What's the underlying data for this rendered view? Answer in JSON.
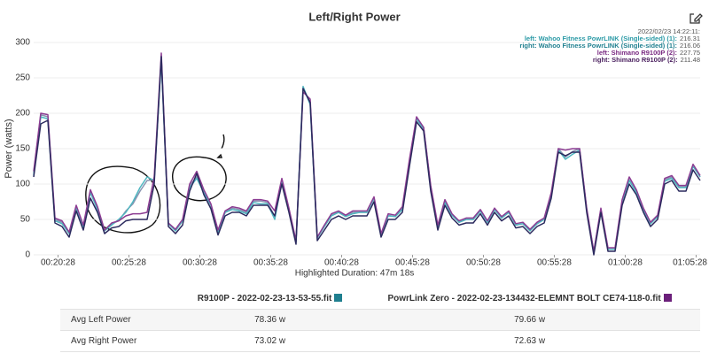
{
  "chart_data": {
    "type": "line",
    "title": "Left/Right Power",
    "ylabel": "Power (watts)",
    "xlabel": "Highlighted Duration: 47m 18s",
    "legend_title": "2022/02/23 14:22:11:",
    "grid": true,
    "legend_position": "upper right",
    "x": [
      "00:18:45",
      "00:19:15",
      "00:19:45",
      "00:20:15",
      "00:20:45",
      "00:21:15",
      "00:21:45",
      "00:22:15",
      "00:22:45",
      "00:23:15",
      "00:23:45",
      "00:24:15",
      "00:24:45",
      "00:25:15",
      "00:25:45",
      "00:26:15",
      "00:26:45",
      "00:27:15",
      "00:27:45",
      "00:28:15",
      "00:28:45",
      "00:29:15",
      "00:29:45",
      "00:30:15",
      "00:30:45",
      "00:31:15",
      "00:31:45",
      "00:32:15",
      "00:32:45",
      "00:33:15",
      "00:33:45",
      "00:34:15",
      "00:34:45",
      "00:35:15",
      "00:35:45",
      "00:36:15",
      "00:36:45",
      "00:37:15",
      "00:37:45",
      "00:38:15",
      "00:38:45",
      "00:39:15",
      "00:39:45",
      "00:40:15",
      "00:40:45",
      "00:41:15",
      "00:41:45",
      "00:42:15",
      "00:42:45",
      "00:43:15",
      "00:43:45",
      "00:44:15",
      "00:44:45",
      "00:45:15",
      "00:45:45",
      "00:46:15",
      "00:46:45",
      "00:47:15",
      "00:47:45",
      "00:48:15",
      "00:48:45",
      "00:49:15",
      "00:49:45",
      "00:50:15",
      "00:50:45",
      "00:51:15",
      "00:51:45",
      "00:52:15",
      "00:52:45",
      "00:53:15",
      "00:53:45",
      "00:54:15",
      "00:54:45",
      "00:55:15",
      "00:55:45",
      "00:56:15",
      "00:56:45",
      "00:57:15",
      "00:57:45",
      "00:58:15",
      "00:58:45",
      "00:59:15",
      "00:59:45",
      "01:00:15",
      "01:00:45",
      "01:01:15",
      "01:01:45",
      "01:02:15",
      "01:02:45",
      "01:03:15",
      "01:03:45",
      "01:04:15",
      "01:04:45",
      "01:05:15",
      "01:05:45"
    ],
    "xlim": [
      "00:18:45",
      "01:05:45"
    ],
    "xticks": [
      "00:20:28",
      "00:25:28",
      "00:30:28",
      "00:35:28",
      "00:40:28",
      "00:45:28",
      "00:50:28",
      "00:55:28",
      "01:00:28",
      "01:05:28"
    ],
    "ylim": [
      0,
      310
    ],
    "yticks": [
      0,
      50,
      100,
      150,
      200,
      250,
      300
    ],
    "series": [
      {
        "name": "right: Wahoo Fitness PowrLINK (Single-sided) (1):",
        "legend_color": "#1f7f8f",
        "color": "#8a93b0",
        "hover_value": 216.06,
        "values": [
          115,
          198,
          195,
          50,
          46,
          30,
          68,
          40,
          90,
          66,
          34,
          44,
          48,
          62,
          72,
          90,
          105,
          106,
          278,
          44,
          34,
          48,
          98,
          110,
          90,
          70,
          33,
          60,
          66,
          64,
          60,
          76,
          76,
          74,
          54,
          106,
          64,
          18,
          236,
          214,
          24,
          40,
          56,
          60,
          55,
          60,
          60,
          60,
          80,
          28,
          56,
          54,
          66,
          132,
          194,
          180,
          96,
          40,
          76,
          56,
          46,
          50,
          50,
          62,
          46,
          64,
          52,
          60,
          42,
          44,
          34,
          44,
          50,
          86,
          150,
          138,
          146,
          150,
          64,
          3,
          64,
          8,
          8,
          76,
          106,
          90,
          64,
          44,
          54,
          106,
          110,
          96,
          96,
          126,
          110
        ]
      },
      {
        "name": "left: Wahoo Fitness PowrLINK (Single-sided) (1):",
        "legend_color": "#2b9aa6",
        "color": "#4fb6c0",
        "hover_value": 216.31,
        "values": [
          112,
          195,
          192,
          48,
          44,
          30,
          66,
          40,
          88,
          64,
          34,
          42,
          50,
          60,
          75,
          95,
          110,
          105,
          275,
          44,
          34,
          48,
          95,
          108,
          88,
          70,
          32,
          60,
          64,
          62,
          58,
          74,
          72,
          72,
          50,
          104,
          64,
          18,
          238,
          212,
          24,
          40,
          55,
          60,
          54,
          58,
          60,
          60,
          80,
          28,
          55,
          54,
          64,
          130,
          192,
          178,
          95,
          40,
          74,
          56,
          46,
          50,
          50,
          62,
          46,
          64,
          52,
          60,
          42,
          44,
          34,
          44,
          50,
          85,
          148,
          135,
          142,
          148,
          64,
          3,
          64,
          8,
          8,
          75,
          105,
          88,
          64,
          44,
          54,
          104,
          108,
          95,
          95,
          125,
          110
        ]
      },
      {
        "name": "left: Shimano R9100P (2):",
        "legend_color": "#7a2a82",
        "color": "#8c3c92",
        "hover_value": 227.75,
        "values": [
          118,
          200,
          198,
          52,
          48,
          32,
          70,
          42,
          92,
          68,
          35,
          45,
          48,
          55,
          58,
          58,
          60,
          110,
          285,
          45,
          36,
          50,
          100,
          118,
          92,
          72,
          35,
          62,
          68,
          66,
          62,
          78,
          78,
          76,
          62,
          108,
          66,
          20,
          230,
          220,
          25,
          42,
          58,
          62,
          56,
          62,
          62,
          62,
          82,
          30,
          58,
          56,
          68,
          135,
          195,
          180,
          98,
          42,
          78,
          58,
          48,
          52,
          52,
          64,
          48,
          66,
          54,
          62,
          44,
          46,
          36,
          46,
          52,
          88,
          150,
          148,
          150,
          150,
          66,
          5,
          66,
          10,
          10,
          78,
          110,
          92,
          66,
          46,
          56,
          108,
          112,
          98,
          98,
          128,
          112
        ]
      },
      {
        "name": "right: Shimano R9100P (2):",
        "legend_color": "#4a1f5e",
        "color": "#2b2a5e",
        "hover_value": 211.48,
        "values": [
          110,
          185,
          190,
          45,
          40,
          25,
          62,
          35,
          80,
          60,
          30,
          38,
          40,
          48,
          50,
          50,
          50,
          100,
          280,
          40,
          30,
          42,
          90,
          115,
          85,
          65,
          28,
          55,
          60,
          60,
          55,
          70,
          70,
          70,
          55,
          100,
          60,
          15,
          235,
          215,
          20,
          35,
          50,
          55,
          50,
          55,
          55,
          55,
          75,
          25,
          50,
          50,
          60,
          125,
          188,
          175,
          90,
          35,
          70,
          52,
          42,
          45,
          45,
          58,
          42,
          60,
          48,
          55,
          38,
          40,
          30,
          40,
          45,
          80,
          145,
          140,
          145,
          145,
          60,
          0,
          60,
          5,
          5,
          70,
          100,
          85,
          60,
          40,
          50,
          100,
          105,
          90,
          90,
          120,
          105
        ]
      }
    ]
  },
  "table": {
    "columns": [
      {
        "name": "R9100P - 2022-02-23-13-53-55.fit",
        "color": "#1f7f8f"
      },
      {
        "name": "PowrLink Zero - 2022-02-23-134432-ELEMNT BOLT CE74-118-0.fit",
        "color": "#6b1f7a"
      }
    ],
    "rows": [
      {
        "label": "Avg Left Power",
        "values": [
          "78.36 w",
          "79.66 w"
        ]
      },
      {
        "label": "Avg Right Power",
        "values": [
          "73.02 w",
          "72.63 w"
        ]
      }
    ]
  }
}
